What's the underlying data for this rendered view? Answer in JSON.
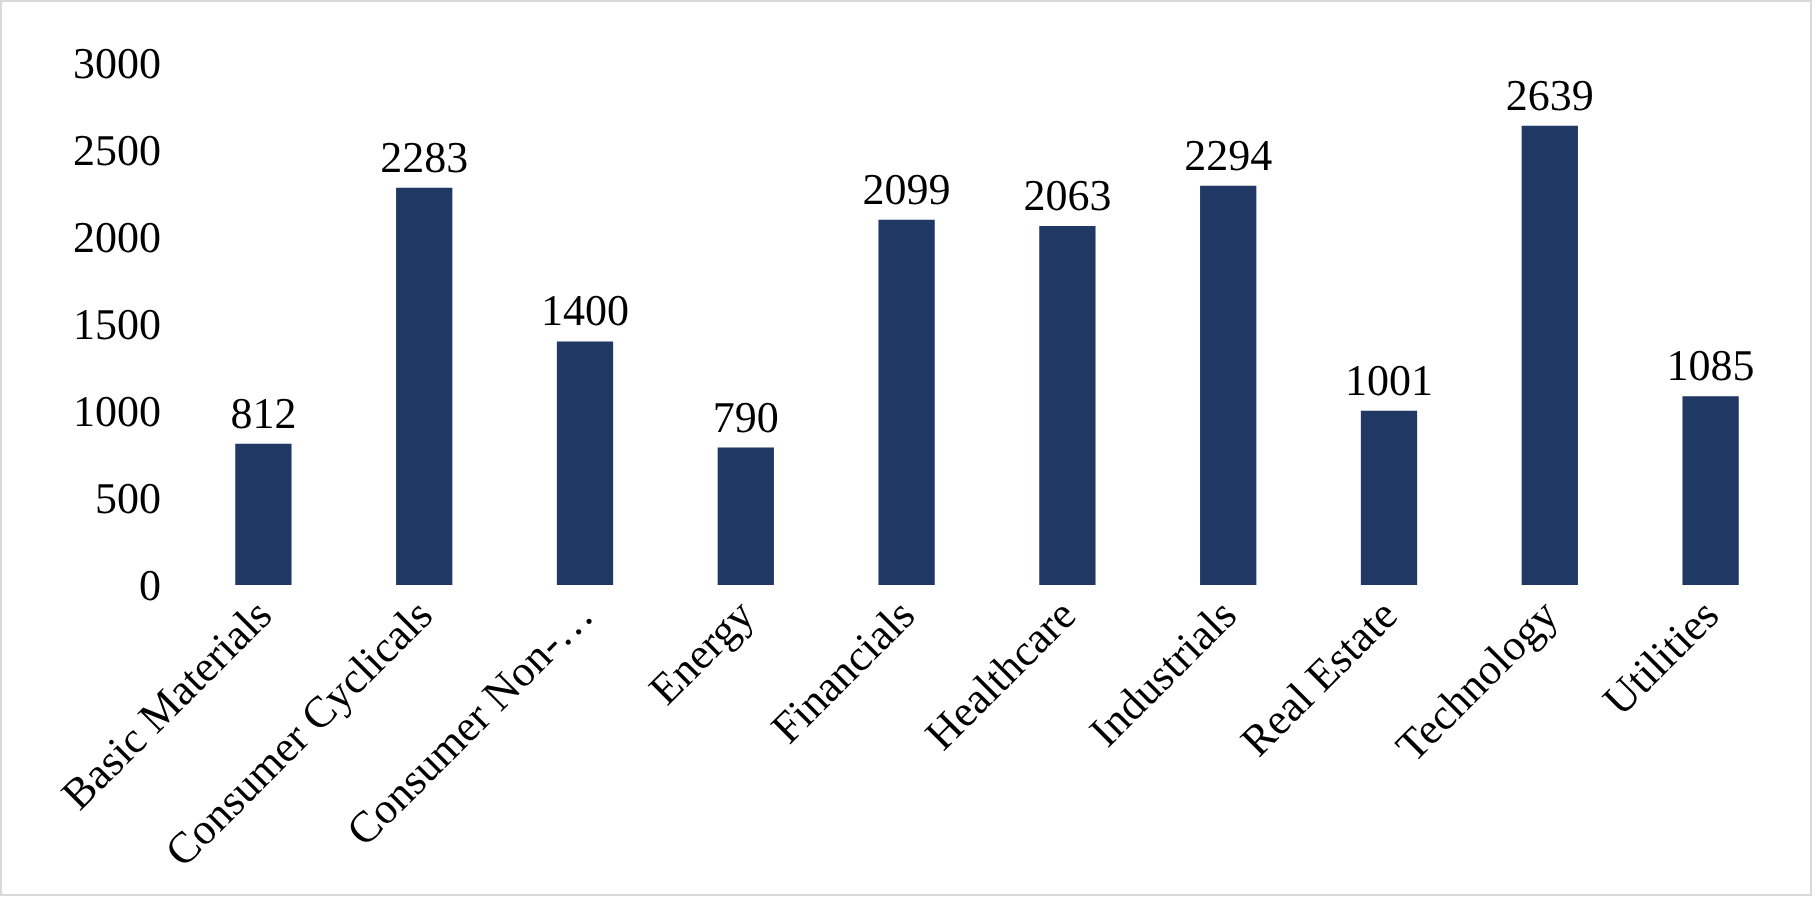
{
  "chart_data": {
    "type": "bar",
    "categories": [
      "Basic Materials",
      "Consumer Cyclicals",
      "Consumer Non-…",
      "Energy",
      "Financials",
      "Healthcare",
      "Industrials",
      "Real Estate",
      "Technology",
      "Utilities"
    ],
    "values": [
      812,
      2283,
      1400,
      790,
      2099,
      2063,
      2294,
      1001,
      2639,
      1085
    ],
    "color": "#203864",
    "ylim": [
      0,
      3000
    ],
    "yticks": [
      0,
      500,
      1000,
      1500,
      2000,
      2500,
      3000
    ],
    "data_labels": true
  }
}
